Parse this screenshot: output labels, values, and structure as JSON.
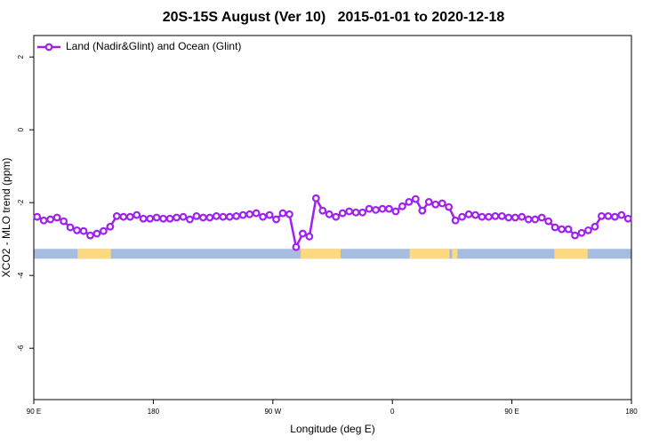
{
  "chart_data": {
    "type": "line",
    "title": "20S-15S August (Ver 10)   2015-01-01 to 2020-12-18",
    "xlabel": "Longitude (deg E)",
    "ylabel": "XCO2 - MLO trend (ppm)",
    "xlim": [
      90,
      540
    ],
    "ylim": [
      -7.41,
      2.59
    ],
    "xticks": [
      {
        "value": 90,
        "label": "90 E"
      },
      {
        "value": 180,
        "label": "180"
      },
      {
        "value": 270,
        "label": "90 W"
      },
      {
        "value": 360,
        "label": "0"
      },
      {
        "value": 450,
        "label": "90 E"
      },
      {
        "value": 540,
        "label": "180"
      }
    ],
    "yticks": [
      2,
      0,
      -2,
      -4,
      -6
    ],
    "legend": "top-left",
    "series": [
      {
        "name": "Land (Nadir&Glint) and Ocean (Glint)",
        "color": "#a020f0",
        "x": [
          92.5,
          97.5,
          102.5,
          107.5,
          112.5,
          117.5,
          122.5,
          127.5,
          132.5,
          137.5,
          142.5,
          147.5,
          152.5,
          157.5,
          162.5,
          167.5,
          172.5,
          177.5,
          182.5,
          187.5,
          192.5,
          197.5,
          202.5,
          207.5,
          212.5,
          217.5,
          222.5,
          227.5,
          232.5,
          237.5,
          242.5,
          247.5,
          252.5,
          257.5,
          262.5,
          267.5,
          272.5,
          277.5,
          282.5,
          287.5,
          292.5,
          297.5,
          302.5,
          307.5,
          312.5,
          317.5,
          322.5,
          327.5,
          332.5,
          337.5,
          342.5,
          347.5,
          352.5,
          357.5,
          362.5,
          367.5,
          372.5,
          377.5,
          382.5,
          387.5,
          392.5,
          397.5,
          402.5,
          407.5,
          412.5,
          417.5,
          422.5,
          427.5,
          432.5,
          437.5,
          442.5,
          447.5,
          452.5,
          457.5,
          462.5,
          467.5,
          472.5,
          477.5,
          482.5,
          487.5,
          492.5,
          497.5,
          502.5,
          507.5,
          512.5,
          517.5,
          522.5,
          527.5,
          532.5,
          537.5
        ],
        "values": [
          -2.39,
          -2.49,
          -2.46,
          -2.41,
          -2.51,
          -2.68,
          -2.76,
          -2.78,
          -2.9,
          -2.85,
          -2.78,
          -2.66,
          -2.37,
          -2.39,
          -2.39,
          -2.34,
          -2.44,
          -2.44,
          -2.41,
          -2.44,
          -2.44,
          -2.41,
          -2.39,
          -2.46,
          -2.37,
          -2.41,
          -2.41,
          -2.37,
          -2.39,
          -2.39,
          -2.37,
          -2.34,
          -2.32,
          -2.29,
          -2.39,
          -2.34,
          -2.46,
          -2.29,
          -2.32,
          -3.22,
          -2.85,
          -2.93,
          -1.88,
          -2.22,
          -2.32,
          -2.39,
          -2.29,
          -2.24,
          -2.27,
          -2.27,
          -2.17,
          -2.2,
          -2.17,
          -2.17,
          -2.24,
          -2.1,
          -1.98,
          -1.9,
          -2.22,
          -1.98,
          -2.05,
          -2.02,
          -2.12,
          -2.49,
          -2.39,
          -2.32,
          -2.34,
          -2.39,
          -2.39,
          -2.37,
          -2.37,
          -2.41,
          -2.41,
          -2.39,
          -2.46,
          -2.46,
          -2.41,
          -2.51,
          -2.68,
          -2.73,
          -2.73,
          -2.9,
          -2.83,
          -2.76,
          -2.66,
          -2.37,
          -2.37,
          -2.39,
          -2.34,
          -2.44
        ]
      }
    ],
    "surface_band": {
      "y_range": [
        -3.54,
        -3.27
      ],
      "ocean_color": "#a7bddf",
      "land_color": "#fdd97f",
      "land_ranges": [
        [
          123,
          148
        ],
        [
          291,
          321
        ],
        [
          373,
          403
        ],
        [
          405,
          409
        ],
        [
          482,
          507
        ]
      ]
    }
  }
}
